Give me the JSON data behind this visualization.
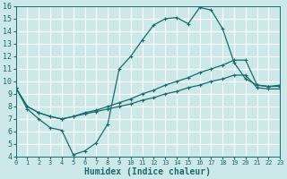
{
  "xlabel": "Humidex (Indice chaleur)",
  "bg_color": "#cce8e8",
  "grid_color": "#b0d8d8",
  "line_color": "#1a6b6b",
  "xlim": [
    0,
    23
  ],
  "ylim": [
    4,
    16
  ],
  "xticks": [
    0,
    1,
    2,
    3,
    4,
    5,
    6,
    7,
    8,
    9,
    10,
    11,
    12,
    13,
    14,
    15,
    16,
    17,
    18,
    19,
    20,
    21,
    22,
    23
  ],
  "yticks": [
    4,
    5,
    6,
    7,
    8,
    9,
    10,
    11,
    12,
    13,
    14,
    15,
    16
  ],
  "line_jagged_x": [
    0,
    1,
    2,
    3,
    4,
    5,
    6,
    7,
    8,
    9,
    10,
    11,
    12,
    13,
    14,
    15,
    16,
    17,
    18,
    19,
    20,
    21,
    22,
    23
  ],
  "line_jagged_y": [
    9.5,
    7.8,
    7.0,
    6.3,
    6.1,
    4.15,
    4.45,
    5.1,
    6.6,
    11.0,
    12.0,
    13.3,
    14.5,
    15.0,
    15.1,
    14.6,
    15.9,
    15.7,
    14.2,
    11.5,
    10.2,
    9.7,
    9.6,
    9.7
  ],
  "line_upper_x": [
    0,
    1,
    2,
    3,
    4,
    5,
    6,
    7,
    8,
    9,
    10,
    11,
    12,
    13,
    14,
    15,
    16,
    17,
    18,
    19,
    20,
    21,
    22,
    23
  ],
  "line_upper_y": [
    9.5,
    8.0,
    7.5,
    7.2,
    7.0,
    7.2,
    7.5,
    7.7,
    8.0,
    8.3,
    8.6,
    9.0,
    9.3,
    9.7,
    10.0,
    10.3,
    10.7,
    11.0,
    11.3,
    11.7,
    11.7,
    9.7,
    9.6,
    9.6
  ],
  "line_lower_x": [
    0,
    1,
    2,
    3,
    4,
    5,
    6,
    7,
    8,
    9,
    10,
    11,
    12,
    13,
    14,
    15,
    16,
    17,
    18,
    19,
    20,
    21,
    22,
    23
  ],
  "line_lower_y": [
    9.5,
    8.0,
    7.5,
    7.2,
    7.0,
    7.2,
    7.4,
    7.6,
    7.8,
    8.0,
    8.2,
    8.5,
    8.7,
    9.0,
    9.2,
    9.5,
    9.7,
    10.0,
    10.2,
    10.5,
    10.5,
    9.5,
    9.4,
    9.4
  ]
}
